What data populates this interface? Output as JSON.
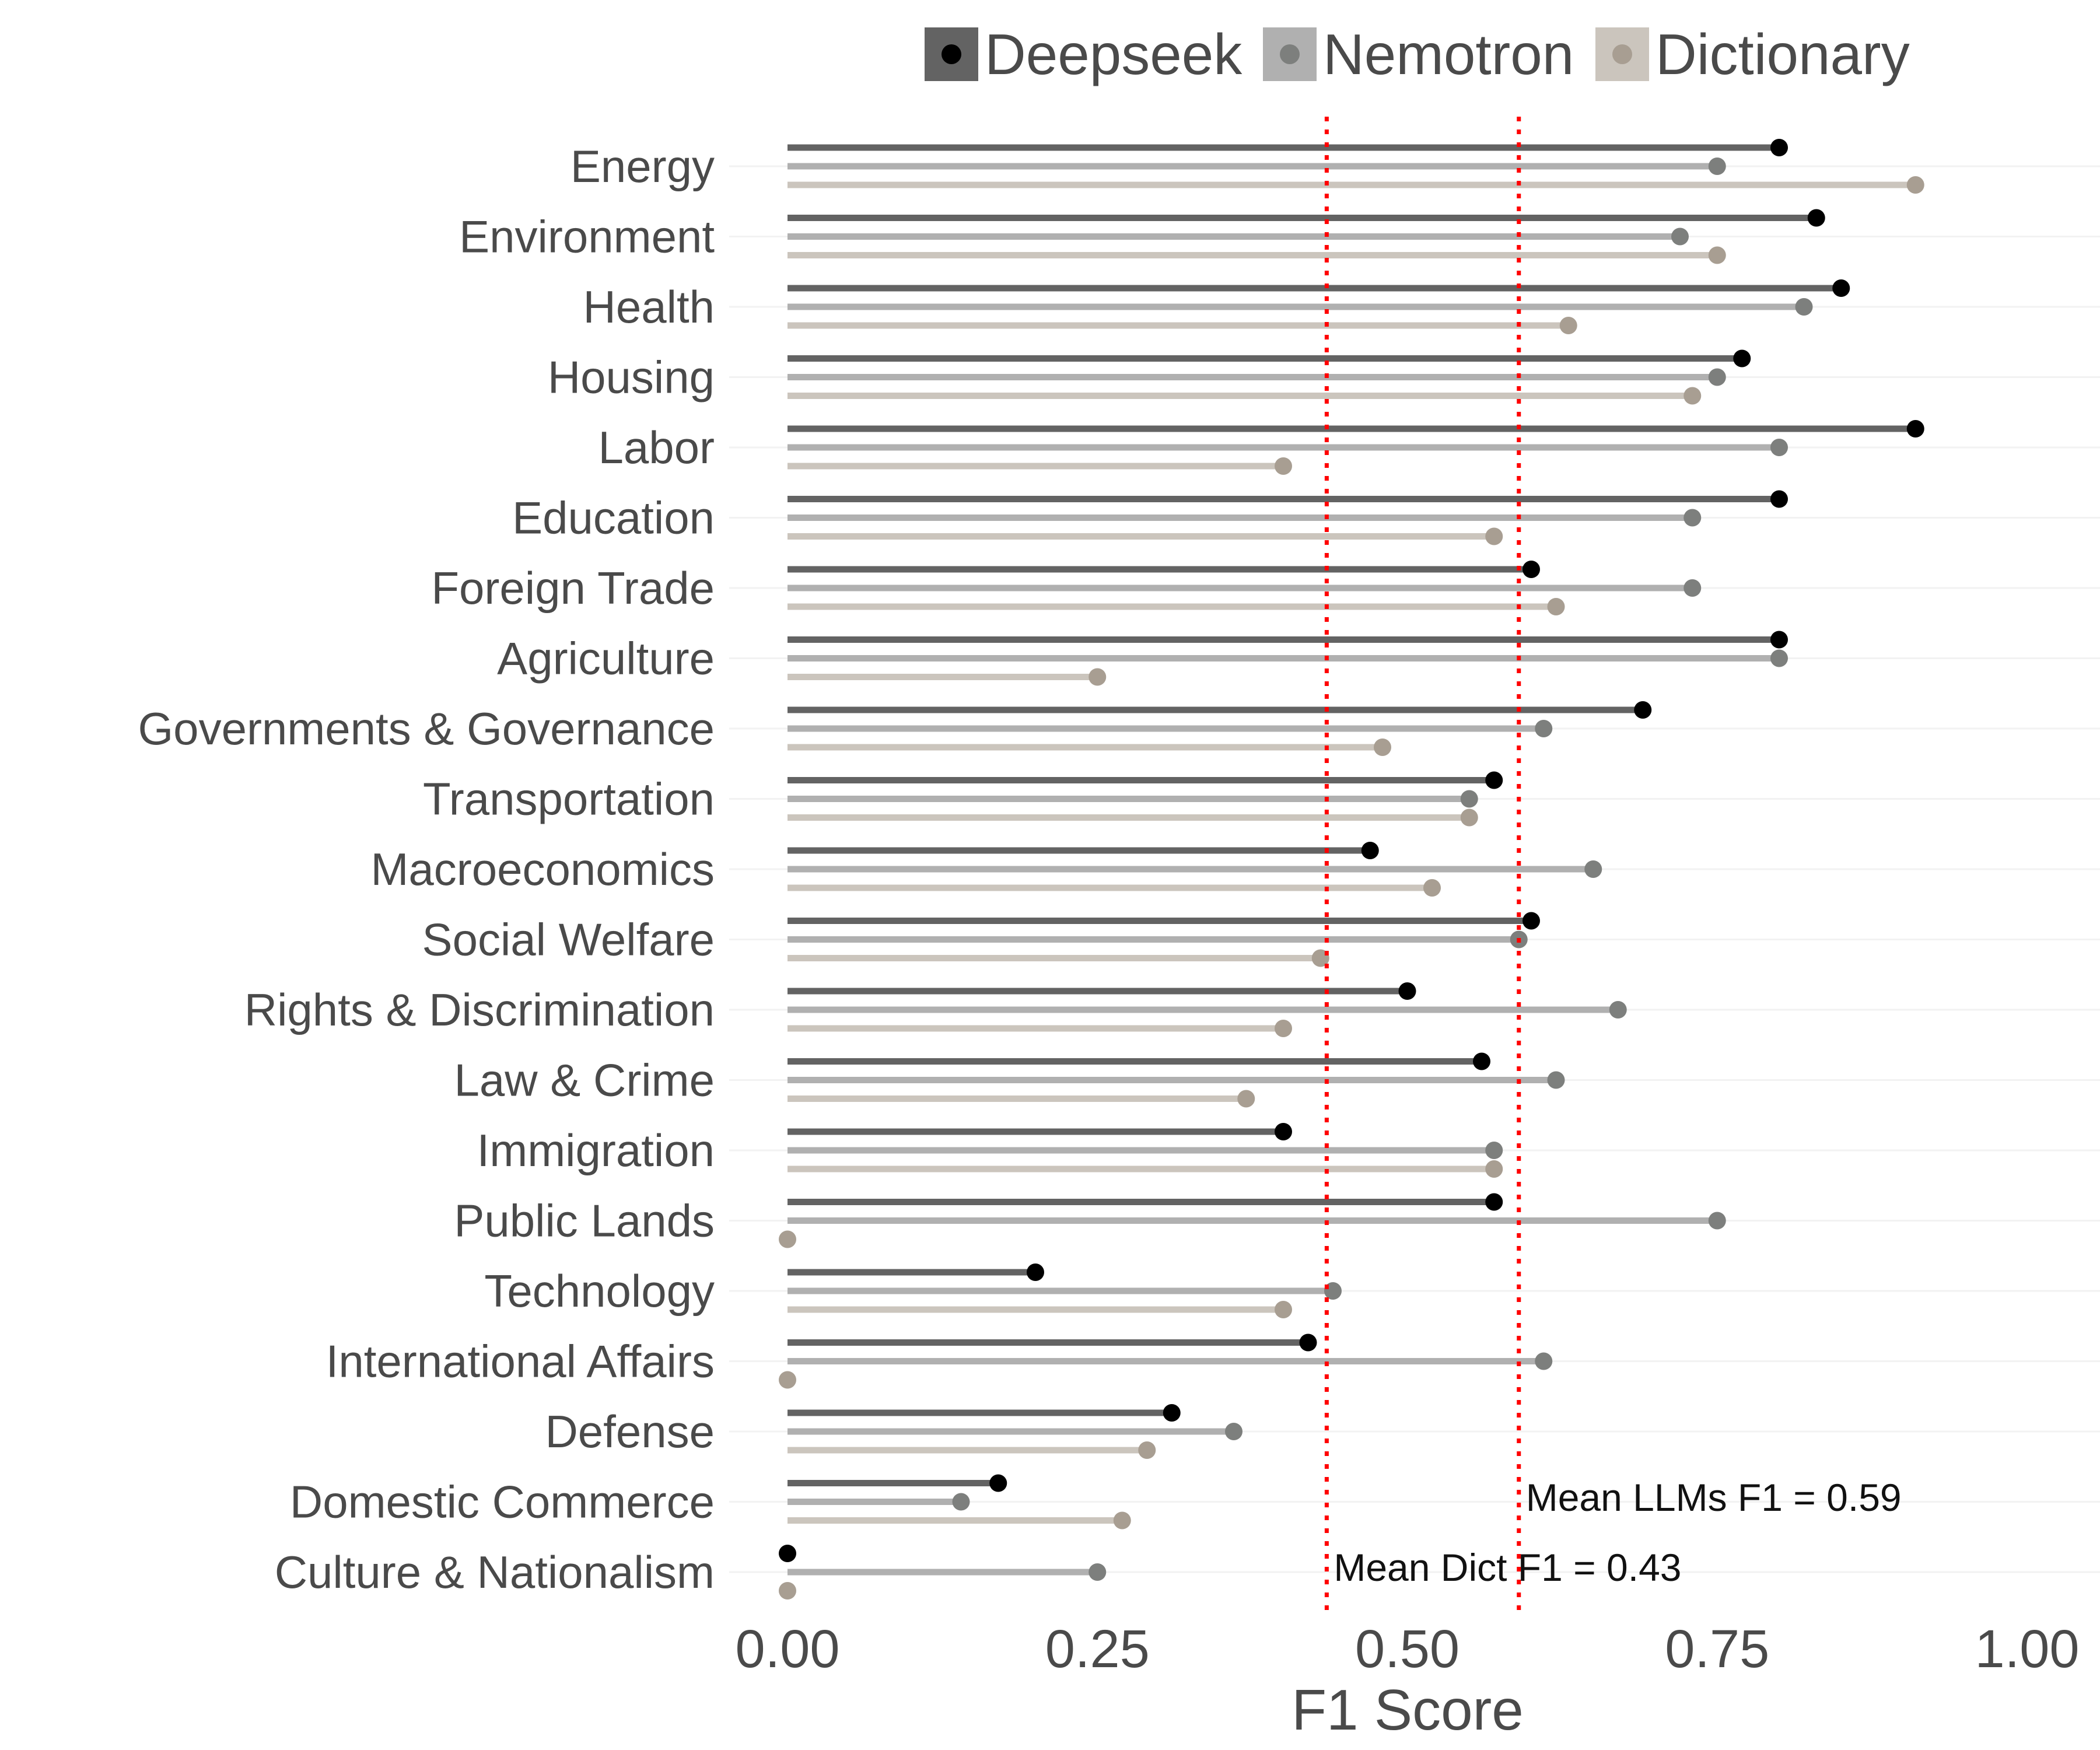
{
  "chart_data": {
    "type": "lollipop",
    "xlabel": "F1 Score",
    "ylabel": "",
    "xlim": [
      0,
      1
    ],
    "x_ticks": [
      "0.00",
      "0.25",
      "0.50",
      "0.75",
      "1.00"
    ],
    "grid": true,
    "legend_position": "top-right",
    "categories": [
      "Energy",
      "Environment",
      "Health",
      "Housing",
      "Labor",
      "Education",
      "Foreign Trade",
      "Agriculture",
      "Governments & Governance",
      "Transportation",
      "Macroeconomics",
      "Social Welfare",
      "Rights & Discrimination",
      "Law & Crime",
      "Immigration",
      "Public Lands",
      "Technology",
      "International Affairs",
      "Defense",
      "Domestic Commerce",
      "Culture & Nationalism"
    ],
    "series": [
      {
        "name": "Deepseek",
        "line_color": "#636363",
        "point_color": "#000000",
        "values": [
          0.8,
          0.83,
          0.85,
          0.77,
          0.91,
          0.8,
          0.6,
          0.8,
          0.69,
          0.57,
          0.47,
          0.6,
          0.5,
          0.56,
          0.4,
          0.57,
          0.2,
          0.42,
          0.31,
          0.17,
          0.0
        ]
      },
      {
        "name": "Nemotron",
        "line_color": "#b0b0b0",
        "point_color": "#7d7f7d",
        "values": [
          0.75,
          0.72,
          0.82,
          0.75,
          0.8,
          0.73,
          0.73,
          0.8,
          0.61,
          0.55,
          0.65,
          0.59,
          0.67,
          0.62,
          0.57,
          0.75,
          0.44,
          0.61,
          0.36,
          0.14,
          0.25
        ]
      },
      {
        "name": "Dictionary",
        "line_color": "#cbc5bd",
        "point_color": "#a89e92",
        "values": [
          0.91,
          0.75,
          0.63,
          0.73,
          0.4,
          0.57,
          0.62,
          0.25,
          0.48,
          0.55,
          0.52,
          0.43,
          0.4,
          0.37,
          0.57,
          0.0,
          0.4,
          0.0,
          0.29,
          0.27,
          0.0
        ]
      }
    ],
    "reference_lines": [
      {
        "value": 0.59,
        "color": "#ff0000",
        "label": "Mean LLMs F1 = 0.59"
      },
      {
        "value": 0.435,
        "color": "#ff0000",
        "label": "Mean Dict F1 = 0.43"
      }
    ]
  }
}
